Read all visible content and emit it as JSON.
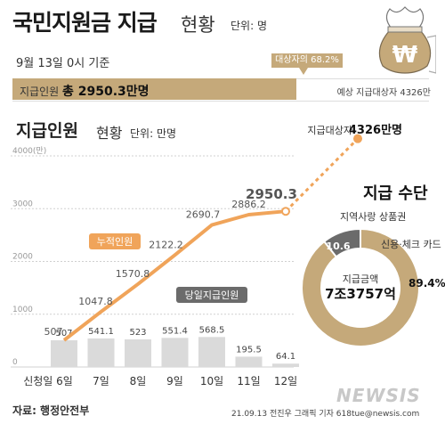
{
  "header": {
    "title": "국민지원금 지급",
    "subtitle": "현황",
    "unit": "단위: 명",
    "date": "9월 13일 0시 기준"
  },
  "progress": {
    "label_prefix": "지급인원",
    "label_value": "총 2950.3만명",
    "percent_label": "대상자의 68.2%",
    "right_label": "예상 지급대상자 4326만",
    "fraction": 0.682
  },
  "section": {
    "title": "지급인원",
    "subtitle": "현황",
    "unit": "단위: 만명"
  },
  "target": {
    "label": "지급대상자",
    "value": "4326만명"
  },
  "pie_section": {
    "title": "지급 수단",
    "local_label": "지역사랑 상품권",
    "card_label": "신용·체크 카드",
    "center_label": "지급금액",
    "center_value": "7조3757억",
    "local_value_label": "10.6",
    "card_value_label": "89.4%"
  },
  "labels": {
    "cumulative": "누적인원",
    "daily": "당일지급인원"
  },
  "footer": {
    "source": "자료: 행정안전부",
    "credit": "21.09.13 전진우 그래픽 기자 618tue@newsis.com",
    "logo": "NEWSIS"
  },
  "colors": {
    "accent": "#c5a97a",
    "orange": "#f0a45a",
    "bar": "#dadada",
    "grid": "#d0d0d0",
    "dark": "#6b6b6b"
  },
  "chart_data": [
    {
      "type": "line",
      "series": [
        {
          "name": "누적인원",
          "values": [
            507,
            1047.8,
            1570.8,
            2122.2,
            2690.7,
            2886.2,
            2950.3,
            4326
          ]
        }
      ],
      "categories": [
        "신청일 6일",
        "7일",
        "8일",
        "9일",
        "10일",
        "11일",
        "12일",
        "지급대상자"
      ],
      "cumulative_labels": [
        "507",
        "1047.8",
        "1570.8",
        "2122.2",
        "2690.7",
        "2886.2",
        "2950.3",
        "4326만명"
      ],
      "yticks": [
        "0",
        "1000",
        "2000",
        "3000",
        "4000(만)"
      ],
      "ylim": [
        0,
        4000
      ]
    },
    {
      "type": "bar",
      "categories": [
        "신청일 6일",
        "7일",
        "8일",
        "9일",
        "10일",
        "11일",
        "12일"
      ],
      "series": [
        {
          "name": "당일지급인원",
          "values": [
            507,
            541.1,
            523,
            551.4,
            568.5,
            195.5,
            64.1
          ]
        }
      ],
      "value_labels": [
        "507",
        "541.1",
        "523",
        "551.4",
        "568.5",
        "195.5",
        "64.1"
      ]
    },
    {
      "type": "pie",
      "title": "지급 수단",
      "categories": [
        "지역사랑 상품권",
        "신용·체크 카드"
      ],
      "values": [
        10.6,
        89.4
      ]
    }
  ]
}
